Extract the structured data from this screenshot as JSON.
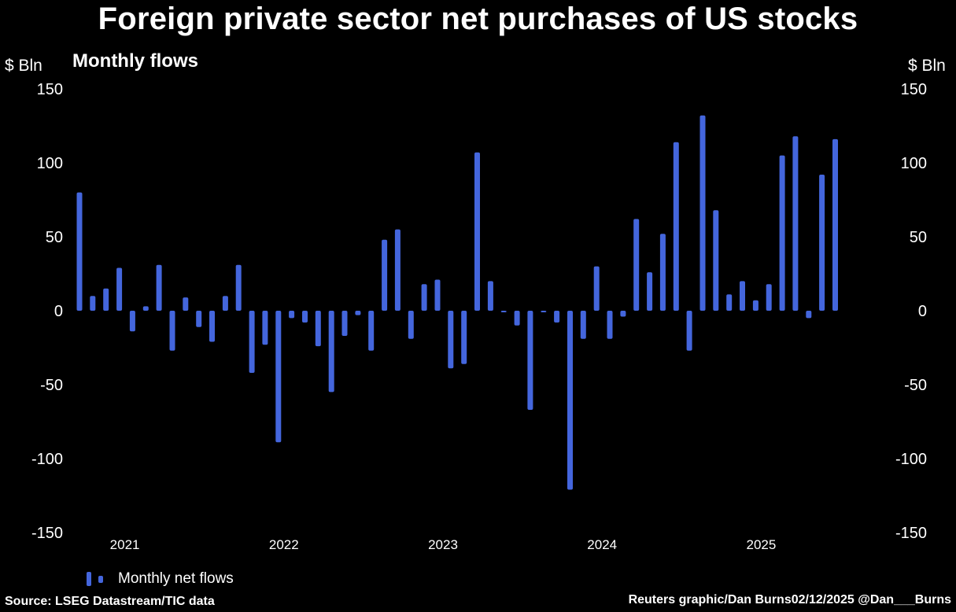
{
  "title": "Foreign private sector net purchases of US stocks",
  "subtitle": "Monthly flows",
  "unit_left": "$ Bln",
  "unit_right": "$ Bln",
  "legend_label": "Monthly net flows",
  "source": "Source: LSEG Datastream/TIC data",
  "credit": "Reuters graphic/Dan Burns02/12/2025 @Dan___Burns",
  "colors": {
    "bar": "#4466dd",
    "background": "#000000",
    "text": "#ffffff"
  },
  "chart_data": {
    "type": "bar",
    "title": "Foreign private sector net purchases of US stocks",
    "subtitle": "Monthly flows",
    "ylabel": "$ Bln",
    "ylim": [
      -150,
      150
    ],
    "yticks": [
      150,
      100,
      50,
      0,
      -50,
      -100,
      -150
    ],
    "xtick_labels": [
      "2021",
      "2022",
      "2023",
      "2024",
      "2025"
    ],
    "start_month": "2020-10",
    "grid": false,
    "series": [
      {
        "name": "Monthly net flows",
        "values": [
          80,
          10,
          15,
          29,
          -14,
          3,
          31,
          -27,
          9,
          -11,
          -21,
          10,
          31,
          -42,
          -23,
          -89,
          -5,
          -8,
          -24,
          -55,
          -17,
          -3,
          -27,
          48,
          55,
          -19,
          18,
          21,
          -39,
          -36,
          107,
          20,
          -1,
          -10,
          -67,
          0,
          -8,
          -121,
          -19,
          30,
          -19,
          -4,
          62,
          26,
          52,
          114,
          -27,
          132,
          68,
          11,
          20,
          7,
          18,
          105,
          118,
          -5,
          92,
          116
        ]
      }
    ]
  }
}
